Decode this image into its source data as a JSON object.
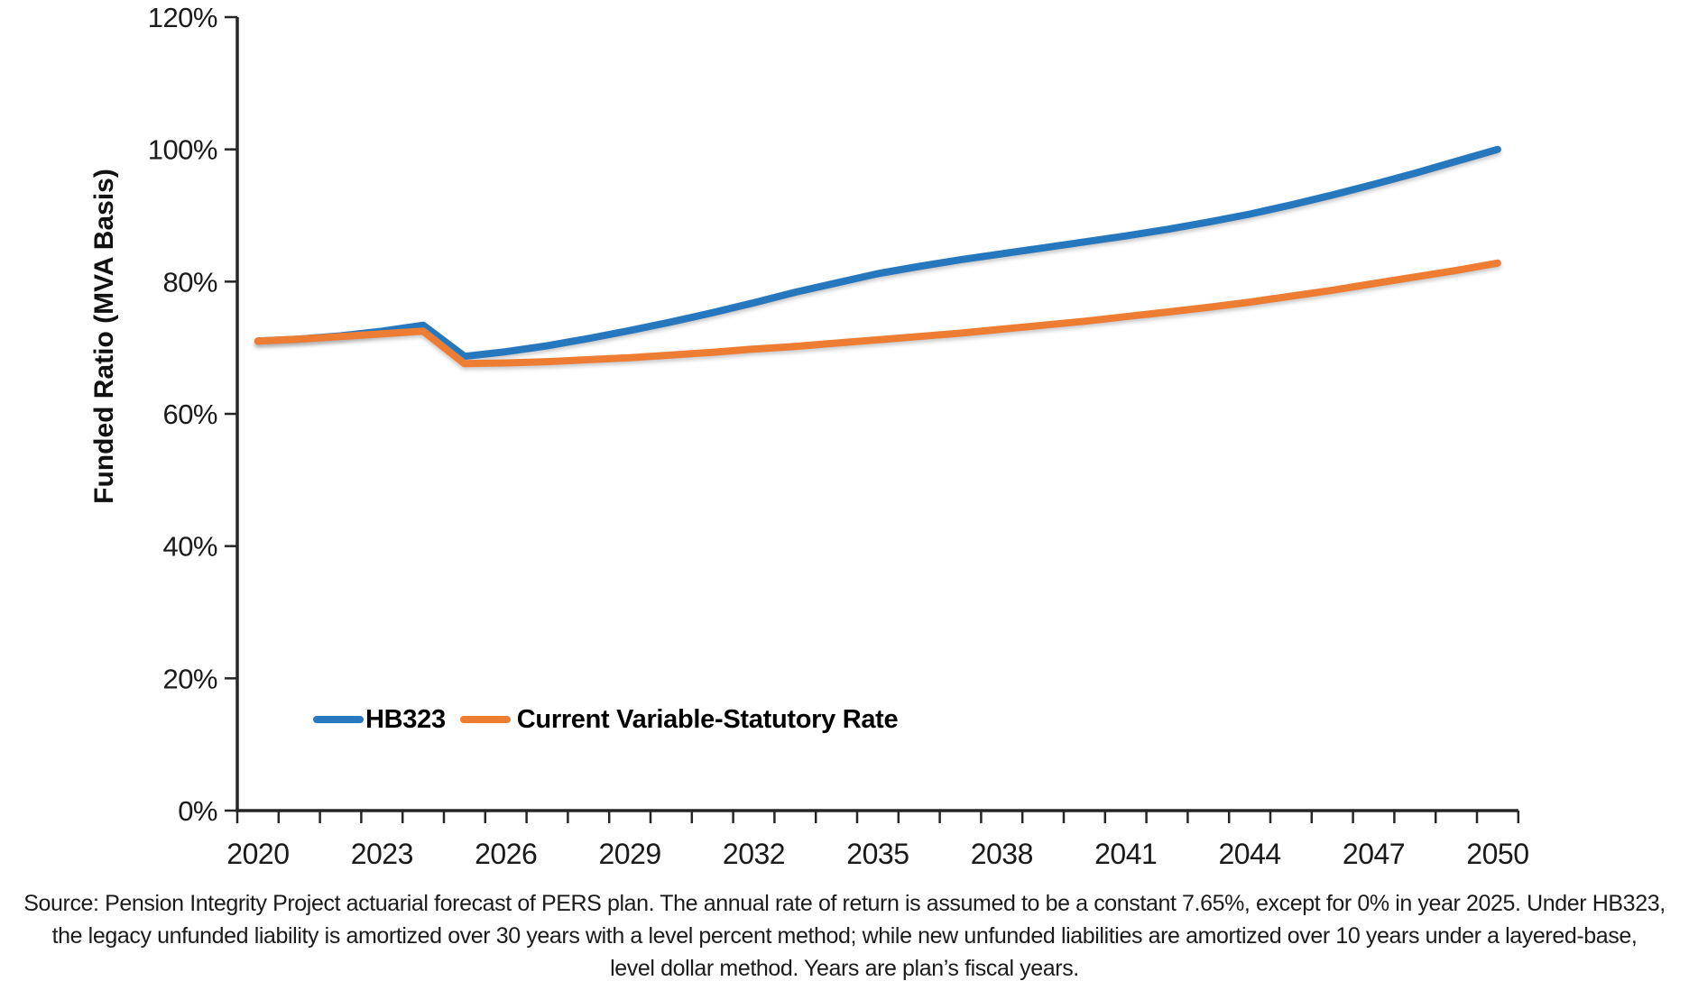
{
  "chart_data": {
    "type": "line",
    "x": [
      2020,
      2021,
      2022,
      2023,
      2024,
      2025,
      2026,
      2027,
      2028,
      2029,
      2030,
      2031,
      2032,
      2033,
      2034,
      2035,
      2036,
      2037,
      2038,
      2039,
      2040,
      2041,
      2042,
      2043,
      2044,
      2045,
      2046,
      2047,
      2048,
      2049,
      2050
    ],
    "series": [
      {
        "name": "HB323",
        "color": "#2878BE",
        "values": [
          71.0,
          71.3,
          71.8,
          72.5,
          73.4,
          68.7,
          69.4,
          70.3,
          71.4,
          72.6,
          73.9,
          75.3,
          76.8,
          78.4,
          79.8,
          81.2,
          82.3,
          83.3,
          84.2,
          85.1,
          86.0,
          86.9,
          87.9,
          89.0,
          90.2,
          91.6,
          93.1,
          94.7,
          96.4,
          98.2,
          100.0
        ]
      },
      {
        "name": "Current Variable-Statutory Rate",
        "color": "#ED7D31",
        "values": [
          71.0,
          71.3,
          71.7,
          72.1,
          72.5,
          67.6,
          67.7,
          67.9,
          68.2,
          68.5,
          68.9,
          69.3,
          69.8,
          70.2,
          70.7,
          71.2,
          71.7,
          72.2,
          72.8,
          73.4,
          74.0,
          74.7,
          75.4,
          76.1,
          76.9,
          77.8,
          78.7,
          79.7,
          80.7,
          81.7,
          82.8
        ]
      }
    ],
    "title": "",
    "xlabel": "",
    "ylabel": "Funded Ratio (MVA Basis)",
    "ylim": [
      0,
      120
    ],
    "ytick_step": 20,
    "ytick_labels": [
      "0%",
      "20%",
      "40%",
      "60%",
      "80%",
      "100%",
      "120%"
    ],
    "xtick_labels": [
      "2020",
      "2023",
      "2026",
      "2029",
      "2032",
      "2035",
      "2038",
      "2041",
      "2044",
      "2047",
      "2050"
    ],
    "xtick_label_interval": 3,
    "grid": false,
    "legend_position": "inside-bottom-left",
    "axis_color": "#262626"
  },
  "source_note": {
    "lines": [
      "Source: Pension Integrity Project actuarial forecast of PERS plan. The annual rate of return is assumed to be a constant 7.65%, except for 0% in year 2025. Under HB323,",
      "the legacy unfunded liability is amortized over 30 years with a level percent method; while new unfunded liabilities are amortized over 10 years under a layered-base,",
      "level dollar method. Years are plan’s fiscal years."
    ]
  }
}
